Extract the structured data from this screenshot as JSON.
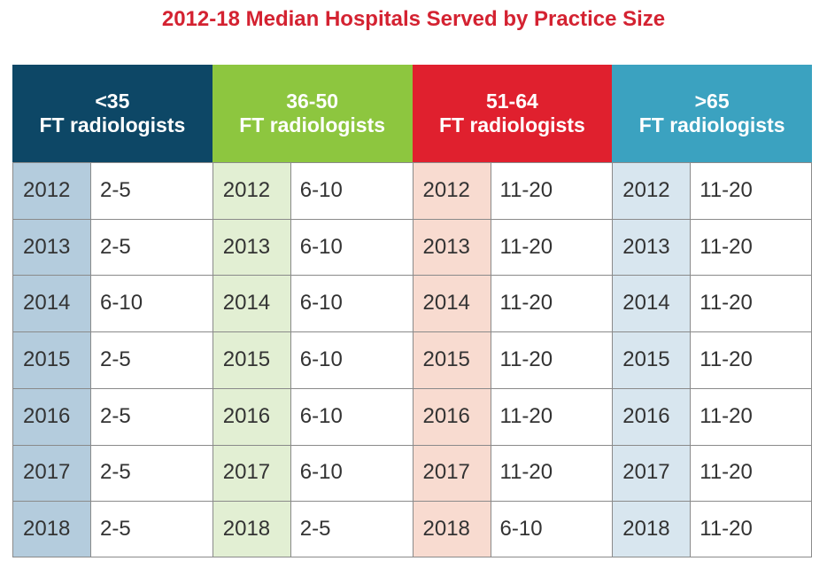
{
  "chart_data": {
    "type": "table",
    "title": "2012-18 Median Hospitals Served by Practice Size",
    "columns": [
      {
        "header_line1": "<35",
        "header_line2": "FT radiologists",
        "header_color": "#0d4766",
        "year_color": "#b4ccdd",
        "rows": [
          {
            "year": "2012",
            "value": "2-5"
          },
          {
            "year": "2013",
            "value": "2-5"
          },
          {
            "year": "2014",
            "value": "6-10"
          },
          {
            "year": "2015",
            "value": "2-5"
          },
          {
            "year": "2016",
            "value": "2-5"
          },
          {
            "year": "2017",
            "value": "2-5"
          },
          {
            "year": "2018",
            "value": "2-5"
          }
        ]
      },
      {
        "header_line1": "36-50",
        "header_line2": "FT radiologists",
        "header_color": "#8dc63f",
        "year_color": "#e2efd3",
        "rows": [
          {
            "year": "2012",
            "value": "6-10"
          },
          {
            "year": "2013",
            "value": "6-10"
          },
          {
            "year": "2014",
            "value": "6-10"
          },
          {
            "year": "2015",
            "value": "6-10"
          },
          {
            "year": "2016",
            "value": "6-10"
          },
          {
            "year": "2017",
            "value": "6-10"
          },
          {
            "year": "2018",
            "value": "2-5"
          }
        ]
      },
      {
        "header_line1": "51-64",
        "header_line2": "FT radiologists",
        "header_color": "#e0202e",
        "year_color": "#f8dbd0",
        "rows": [
          {
            "year": "2012",
            "value": "11-20"
          },
          {
            "year": "2013",
            "value": "11-20"
          },
          {
            "year": "2014",
            "value": "11-20"
          },
          {
            "year": "2015",
            "value": "11-20"
          },
          {
            "year": "2016",
            "value": "11-20"
          },
          {
            "year": "2017",
            "value": "11-20"
          },
          {
            "year": "2018",
            "value": "6-10"
          }
        ]
      },
      {
        "header_line1": ">65",
        "header_line2": "FT radiologists",
        "header_color": "#3ba2c0",
        "year_color": "#d8e6ef",
        "rows": [
          {
            "year": "2012",
            "value": "11-20"
          },
          {
            "year": "2013",
            "value": "11-20"
          },
          {
            "year": "2014",
            "value": "11-20"
          },
          {
            "year": "2015",
            "value": "11-20"
          },
          {
            "year": "2016",
            "value": "11-20"
          },
          {
            "year": "2017",
            "value": "11-20"
          },
          {
            "year": "2018",
            "value": "11-20"
          }
        ]
      }
    ]
  }
}
